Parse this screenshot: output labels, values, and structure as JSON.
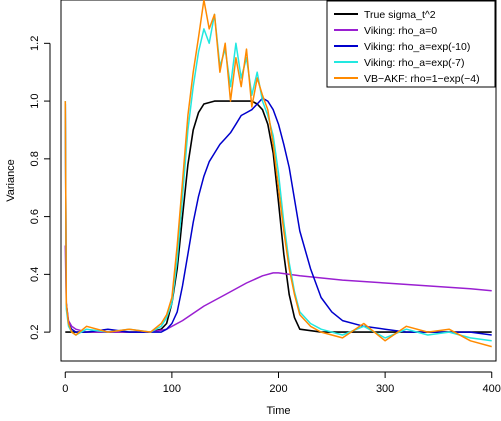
{
  "chart_data": {
    "type": "line",
    "title": "",
    "xlabel": "Time",
    "ylabel": "Variance",
    "xlim": [
      -4,
      404
    ],
    "ylim": [
      0.1,
      1.35
    ],
    "x_ticks": [
      0,
      100,
      200,
      300,
      400
    ],
    "y_ticks": [
      0.2,
      0.4,
      0.6,
      0.8,
      1.0,
      1.2
    ],
    "x_tick_labels": [
      "0",
      "100",
      "200",
      "300",
      "400"
    ],
    "y_tick_labels": [
      "0.2",
      "0.4",
      "0.6",
      "0.8",
      "1.0",
      "1.2"
    ],
    "legend_position": "top-right",
    "series": [
      {
        "name": "True sigma_t^2",
        "color": "#000000",
        "x": [
          0,
          60,
          80,
          90,
          95,
          100,
          105,
          110,
          115,
          120,
          125,
          130,
          140,
          160,
          175,
          180,
          185,
          190,
          195,
          200,
          205,
          210,
          215,
          220,
          240,
          400
        ],
        "y": [
          0.2,
          0.2,
          0.2,
          0.21,
          0.23,
          0.3,
          0.42,
          0.6,
          0.78,
          0.9,
          0.96,
          0.99,
          1.0,
          1.0,
          1.0,
          0.99,
          0.97,
          0.92,
          0.82,
          0.65,
          0.47,
          0.33,
          0.25,
          0.21,
          0.2,
          0.2
        ]
      },
      {
        "name": "Viking: rho_a=0",
        "color": "#9a1fd1",
        "x": [
          0,
          1,
          3,
          6,
          10,
          20,
          40,
          60,
          80,
          95,
          110,
          130,
          150,
          170,
          185,
          195,
          200,
          220,
          260,
          300,
          340,
          380,
          400
        ],
        "y": [
          0.5,
          0.3,
          0.24,
          0.22,
          0.21,
          0.2,
          0.2,
          0.2,
          0.2,
          0.21,
          0.24,
          0.29,
          0.33,
          0.37,
          0.395,
          0.405,
          0.405,
          0.395,
          0.38,
          0.37,
          0.36,
          0.35,
          0.343
        ]
      },
      {
        "name": "Viking: rho_a=exp(-10)",
        "color": "#0000cc",
        "x": [
          0,
          1,
          3,
          6,
          10,
          20,
          40,
          60,
          80,
          90,
          95,
          100,
          105,
          110,
          115,
          120,
          125,
          130,
          135,
          140,
          145,
          150,
          155,
          160,
          165,
          170,
          175,
          180,
          185,
          190,
          195,
          200,
          205,
          210,
          215,
          220,
          230,
          240,
          250,
          260,
          280,
          300,
          320,
          340,
          360,
          380,
          400
        ],
        "y": [
          0.99,
          0.3,
          0.23,
          0.21,
          0.2,
          0.2,
          0.21,
          0.2,
          0.2,
          0.2,
          0.21,
          0.23,
          0.27,
          0.36,
          0.47,
          0.58,
          0.67,
          0.74,
          0.79,
          0.82,
          0.85,
          0.87,
          0.89,
          0.92,
          0.95,
          0.96,
          0.97,
          0.99,
          1.01,
          1.0,
          0.97,
          0.92,
          0.85,
          0.77,
          0.66,
          0.55,
          0.42,
          0.32,
          0.27,
          0.24,
          0.22,
          0.21,
          0.2,
          0.2,
          0.2,
          0.2,
          0.19
        ]
      },
      {
        "name": "Viking: rho_a=exp(-7)",
        "color": "#22e8e0",
        "x": [
          0,
          1,
          3,
          6,
          10,
          20,
          40,
          60,
          80,
          90,
          95,
          100,
          105,
          110,
          115,
          120,
          125,
          130,
          135,
          140,
          145,
          150,
          155,
          160,
          165,
          170,
          175,
          180,
          185,
          190,
          195,
          200,
          205,
          210,
          215,
          220,
          230,
          240,
          260,
          280,
          300,
          320,
          340,
          360,
          380,
          400
        ],
        "y": [
          1.0,
          0.28,
          0.22,
          0.2,
          0.19,
          0.21,
          0.2,
          0.21,
          0.2,
          0.22,
          0.25,
          0.3,
          0.45,
          0.67,
          0.9,
          1.05,
          1.17,
          1.25,
          1.2,
          1.3,
          1.12,
          1.18,
          1.05,
          1.2,
          1.08,
          1.15,
          1.02,
          1.1,
          1.0,
          0.95,
          0.88,
          0.75,
          0.58,
          0.44,
          0.34,
          0.27,
          0.23,
          0.21,
          0.19,
          0.22,
          0.18,
          0.21,
          0.19,
          0.2,
          0.18,
          0.17
        ]
      },
      {
        "name": "VB−AKF: rho=1−exp(−4)",
        "color": "#ff8a00",
        "x": [
          0,
          1,
          3,
          6,
          10,
          20,
          40,
          60,
          80,
          90,
          95,
          100,
          105,
          110,
          115,
          120,
          125,
          130,
          135,
          140,
          145,
          150,
          155,
          160,
          165,
          170,
          175,
          180,
          185,
          190,
          195,
          200,
          205,
          210,
          215,
          220,
          230,
          240,
          260,
          280,
          300,
          320,
          340,
          360,
          380,
          400
        ],
        "y": [
          1.0,
          0.3,
          0.23,
          0.2,
          0.19,
          0.22,
          0.2,
          0.21,
          0.2,
          0.23,
          0.26,
          0.32,
          0.5,
          0.72,
          0.95,
          1.1,
          1.22,
          1.35,
          1.25,
          1.3,
          1.1,
          1.2,
          1.0,
          1.15,
          1.05,
          1.18,
          0.98,
          1.08,
          1.02,
          0.97,
          0.85,
          0.7,
          0.55,
          0.42,
          0.33,
          0.26,
          0.22,
          0.2,
          0.18,
          0.23,
          0.17,
          0.22,
          0.2,
          0.21,
          0.17,
          0.15
        ]
      }
    ]
  }
}
